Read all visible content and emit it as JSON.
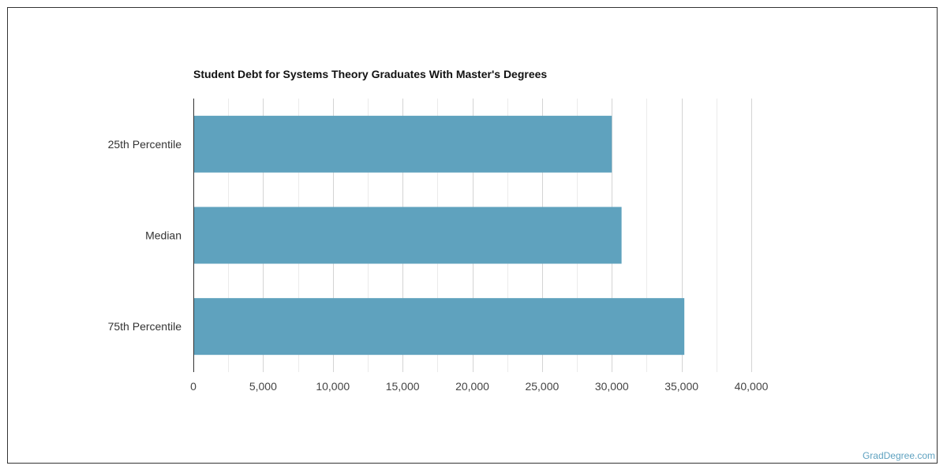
{
  "chart_data": {
    "type": "bar",
    "orientation": "horizontal",
    "title": "Student Debt for Systems Theory Graduates With Master's Degrees",
    "categories": [
      "25th Percentile",
      "Median",
      "75th Percentile"
    ],
    "values": [
      30000,
      30700,
      35200
    ],
    "xlim": [
      0,
      40000
    ],
    "x_ticks": [
      "0",
      "5,000",
      "10,000",
      "15,000",
      "20,000",
      "25,000",
      "30,000",
      "35,000",
      "40,000"
    ],
    "grid": true,
    "bar_color": "#5fa2be"
  },
  "watermark": "GradDegree.com"
}
